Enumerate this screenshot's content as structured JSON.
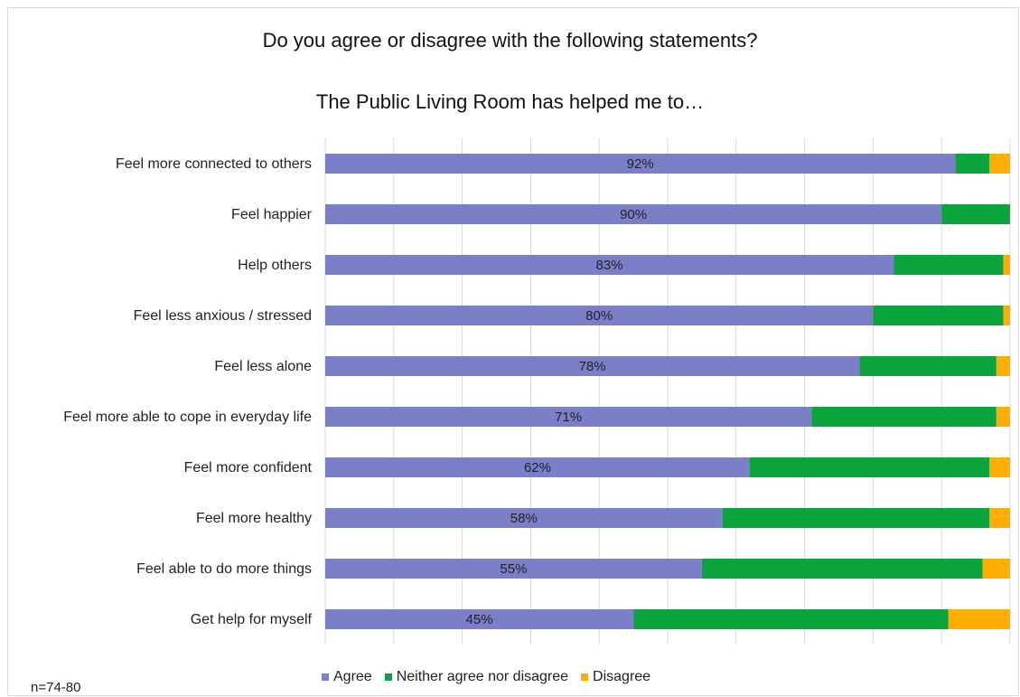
{
  "chart_data": {
    "type": "bar",
    "orientation": "horizontal",
    "stacked": true,
    "title": "Do you agree or disagree with the following statements?",
    "subtitle": "The Public Living Room has helped me to…",
    "categories": [
      "Feel more connected to others",
      "Feel happier",
      "Help others",
      "Feel less anxious / stressed",
      "Feel less alone",
      "Feel more able to cope in everyday life",
      "Feel more confident",
      "Feel more healthy",
      "Feel able to do more things",
      "Get help for myself"
    ],
    "series": [
      {
        "name": "Agree",
        "color": "#7b7fc8",
        "values": [
          92,
          90,
          83,
          80,
          78,
          71,
          62,
          58,
          55,
          45
        ],
        "labels": [
          "92%",
          "90%",
          "83%",
          "80%",
          "78%",
          "71%",
          "62%",
          "58%",
          "55%",
          "45%"
        ]
      },
      {
        "name": "Neither agree nor disagree",
        "color": "#0aa33c",
        "values": [
          5,
          10,
          16,
          19,
          20,
          27,
          35,
          39,
          41,
          46
        ]
      },
      {
        "name": "Disagree",
        "color": "#ffae00",
        "values": [
          3,
          0,
          1,
          1,
          2,
          2,
          3,
          3,
          4,
          9
        ]
      }
    ],
    "xlim": [
      0,
      100
    ],
    "grid": true,
    "legend_position": "bottom"
  },
  "footnote": "n=74-80"
}
